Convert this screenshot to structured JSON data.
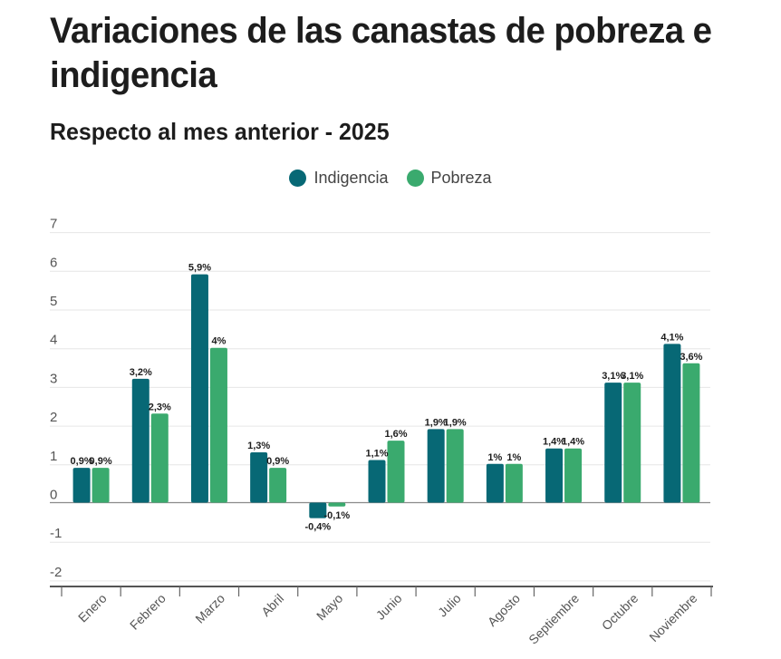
{
  "chart_data": {
    "type": "bar",
    "title": "Variaciones de las canastas de pobreza e indigencia",
    "subtitle": "Respecto al mes anterior - 2025",
    "xlabel": "",
    "ylabel": "",
    "ylim": [
      -2,
      7
    ],
    "yticks": [
      7,
      6,
      5,
      4,
      3,
      2,
      1,
      0,
      -1,
      -2
    ],
    "grid": true,
    "legend_position": "top-center",
    "categories": [
      "Enero",
      "Febrero",
      "Marzo",
      "Abril",
      "Mayo",
      "Junio",
      "Julio",
      "Agosto",
      "Septiembre",
      "Octubre",
      "Noviembre"
    ],
    "series": [
      {
        "name": "Indigencia",
        "color": "#076875",
        "values": [
          0.9,
          3.2,
          5.9,
          1.3,
          -0.4,
          1.1,
          1.9,
          1.0,
          1.4,
          3.1,
          4.1
        ],
        "labels": [
          "0,9%",
          "3,2%",
          "5,9%",
          "1,3%",
          "-0,4%",
          "1,1%",
          "1,9%",
          "1%",
          "1,4%",
          "3,1%",
          "4,1%"
        ]
      },
      {
        "name": "Pobreza",
        "color": "#3aaa6e",
        "values": [
          0.9,
          2.3,
          4.0,
          0.9,
          -0.1,
          1.6,
          1.9,
          1.0,
          1.4,
          3.1,
          3.6
        ],
        "labels": [
          "0,9%",
          "2,3%",
          "4%",
          "0,9%",
          "-0,1%",
          "1,6%",
          "1,9%",
          "1%",
          "1,4%",
          "3,1%",
          "3,6%"
        ]
      }
    ]
  },
  "header": {
    "title": "Variaciones de las canastas de pobreza e indigencia",
    "subtitle": "Respecto al mes anterior - 2025"
  },
  "legend": [
    {
      "label": "Indigencia",
      "color": "#076875"
    },
    {
      "label": "Pobreza",
      "color": "#3aaa6e"
    }
  ]
}
